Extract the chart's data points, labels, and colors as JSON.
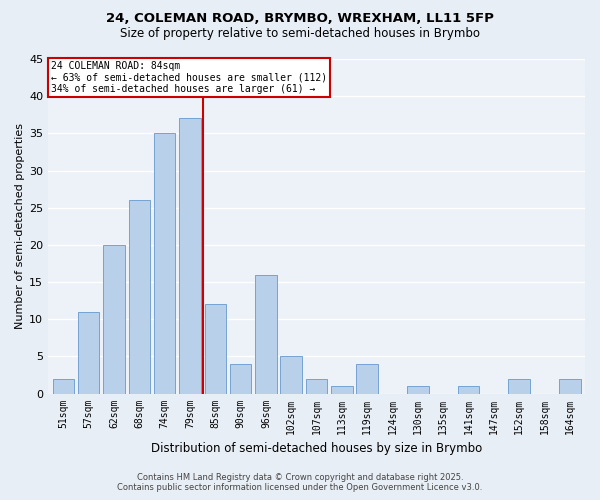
{
  "title1": "24, COLEMAN ROAD, BRYMBO, WREXHAM, LL11 5FP",
  "title2": "Size of property relative to semi-detached houses in Brymbo",
  "xlabel": "Distribution of semi-detached houses by size in Brymbo",
  "ylabel": "Number of semi-detached properties",
  "categories": [
    "51sqm",
    "57sqm",
    "62sqm",
    "68sqm",
    "74sqm",
    "79sqm",
    "85sqm",
    "90sqm",
    "96sqm",
    "102sqm",
    "107sqm",
    "113sqm",
    "119sqm",
    "124sqm",
    "130sqm",
    "135sqm",
    "141sqm",
    "147sqm",
    "152sqm",
    "158sqm",
    "164sqm"
  ],
  "values": [
    2,
    11,
    20,
    26,
    35,
    37,
    12,
    4,
    16,
    5,
    2,
    1,
    4,
    0,
    1,
    0,
    1,
    0,
    2,
    0,
    2
  ],
  "bar_color": "#b8d0ea",
  "bar_edge_color": "#6699cc",
  "annotation_title": "24 COLEMAN ROAD: 84sqm",
  "annotation_line1": "← 63% of semi-detached houses are smaller (112)",
  "annotation_line2": "34% of semi-detached houses are larger (61) →",
  "annotation_box_color": "#ffffff",
  "annotation_box_edge_color": "#cc0000",
  "vline_x": 5.5,
  "vline_color": "#cc0000",
  "footer1": "Contains HM Land Registry data © Crown copyright and database right 2025.",
  "footer2": "Contains public sector information licensed under the Open Government Licence v3.0.",
  "bg_color": "#e8eef6",
  "plot_bg_color": "#edf2f9",
  "grid_color": "#ffffff",
  "ylim": [
    0,
    45
  ],
  "yticks": [
    0,
    5,
    10,
    15,
    20,
    25,
    30,
    35,
    40,
    45
  ]
}
